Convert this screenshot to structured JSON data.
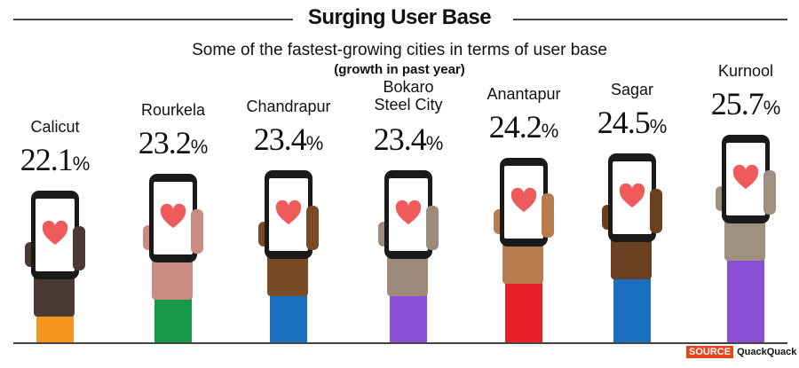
{
  "title": "Surging User Base",
  "subtitle": "Some of the fastest-growing cities in terms of user base",
  "subtitle2": "(growth in past year)",
  "source": {
    "tag": "SOURCE",
    "name": "QuackQuack"
  },
  "chart_data": {
    "type": "bar",
    "title": "Surging User Base",
    "unit": "%",
    "categories": [
      "Calicut",
      "Rourkela",
      "Chandrapur",
      "Bokaro Steel City",
      "Anantapur",
      "Sagar",
      "Kurnool"
    ],
    "values": [
      22.1,
      23.2,
      23.4,
      23.4,
      24.2,
      24.5,
      25.7
    ],
    "value_labels": [
      "22.1",
      "23.2",
      "23.4",
      "23.4",
      "24.2",
      "24.5",
      "25.7"
    ],
    "sleeve_colors": [
      "#f7941d",
      "#17994a",
      "#1a6fc0",
      "#8a4fd6",
      "#e8202a",
      "#1a6fc0",
      "#8a4fd6"
    ],
    "skin_colors": [
      "#4a3a33",
      "#c98b82",
      "#7a4a25",
      "#9c8a7a",
      "#b87d4e",
      "#6a4020",
      "#a09080"
    ],
    "heart_color": "#ef5a5a",
    "icon": "phone-with-heart-icon"
  }
}
